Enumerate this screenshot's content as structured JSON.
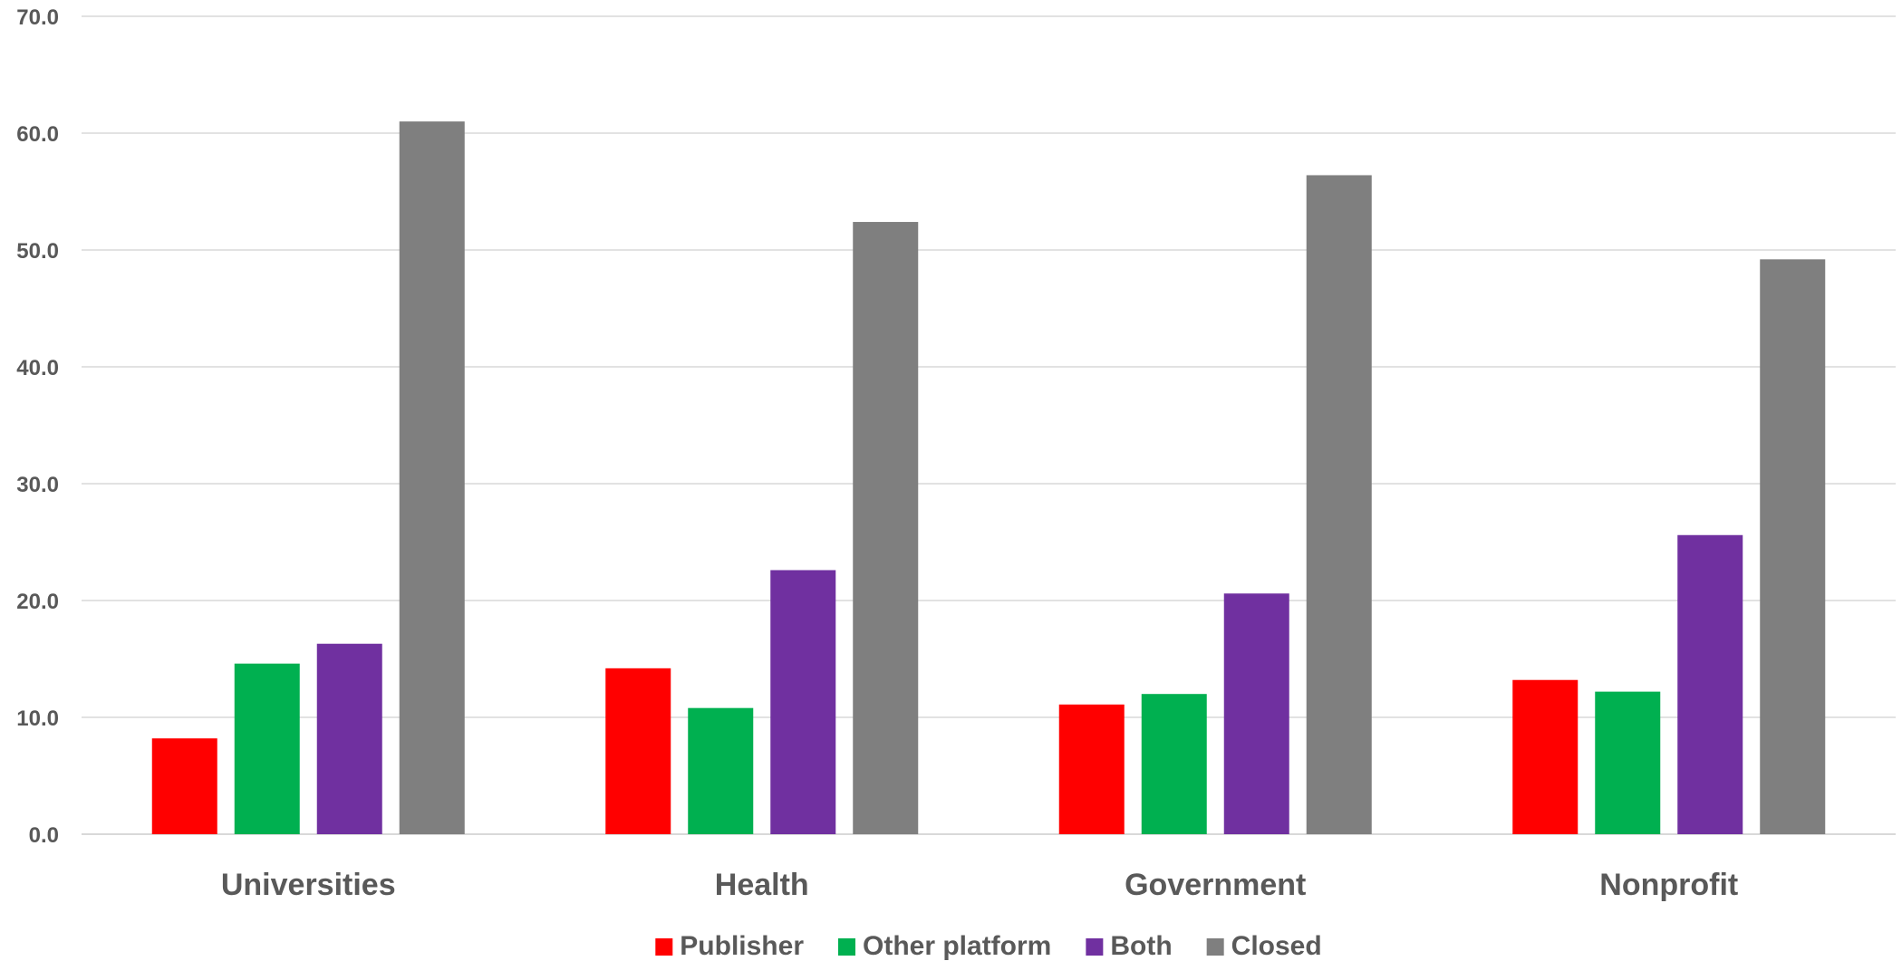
{
  "chart_data": {
    "type": "bar",
    "title": "",
    "xlabel": "",
    "ylabel": "",
    "ylim": [
      0,
      70
    ],
    "y_ticks": [
      "0.0",
      "10.0",
      "20.0",
      "30.0",
      "40.0",
      "50.0",
      "60.0",
      "70.0"
    ],
    "categories": [
      "Universities",
      "Health",
      "Government",
      "Nonprofit"
    ],
    "series": [
      {
        "name": "Publisher",
        "color": "#ff0000",
        "values": [
          8.2,
          14.2,
          11.1,
          13.2
        ]
      },
      {
        "name": "Other platform",
        "color": "#00b050",
        "values": [
          14.6,
          10.8,
          12.0,
          12.2
        ]
      },
      {
        "name": "Both",
        "color": "#7030a0",
        "values": [
          16.3,
          22.6,
          20.6,
          25.6
        ]
      },
      {
        "name": "Closed",
        "color": "#7f7f7f",
        "values": [
          61.0,
          52.4,
          56.4,
          49.2
        ]
      }
    ],
    "grid": true,
    "legend_position": "bottom"
  }
}
